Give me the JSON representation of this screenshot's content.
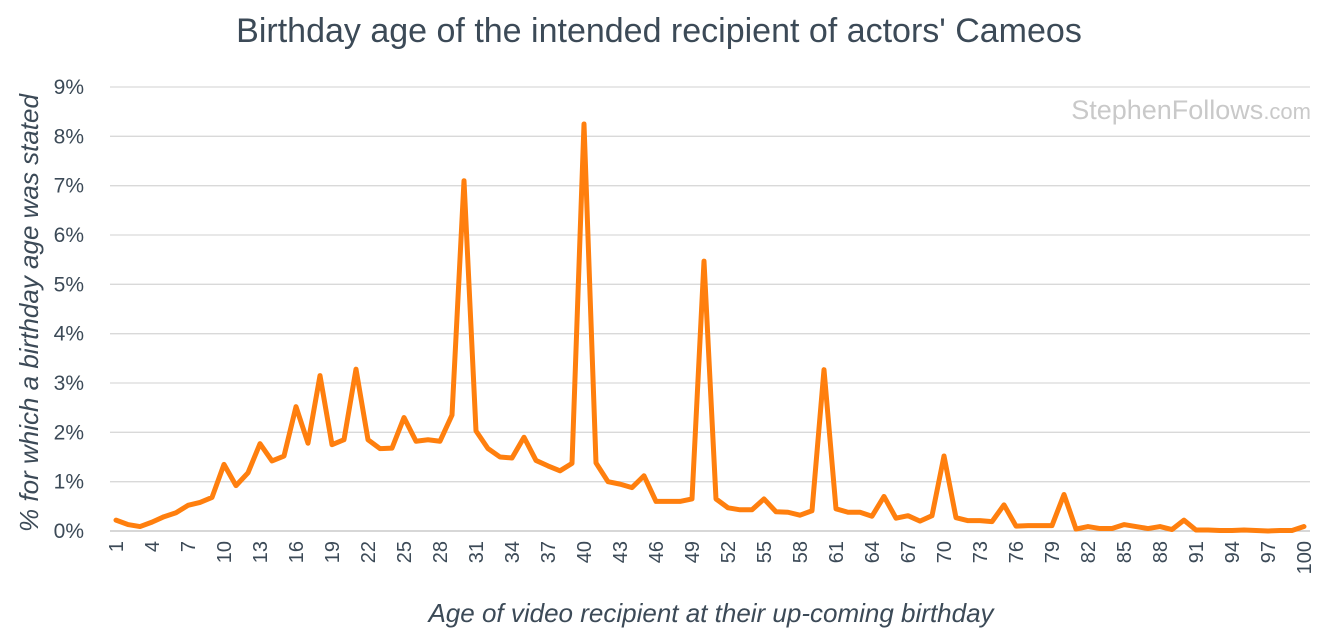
{
  "colors": {
    "line": "#ff7f0e",
    "text": "#3c4a57",
    "grid": "#d9d9d9",
    "watermark": "#c9c9c9"
  },
  "watermark": {
    "main": "StephenFollows",
    "suffix": ".com"
  },
  "chart_data": {
    "type": "line",
    "title": "Birthday age of the intended recipient of actors' Cameos",
    "xlabel": "Age of video recipient at their up-coming birthday",
    "ylabel": "% for which a birthday age was stated",
    "ylim": [
      0,
      9
    ],
    "y_ticks": [
      0,
      1,
      2,
      3,
      4,
      5,
      6,
      7,
      8,
      9
    ],
    "y_tick_labels": [
      "0%",
      "1%",
      "2%",
      "3%",
      "4%",
      "5%",
      "6%",
      "7%",
      "8%",
      "9%"
    ],
    "x_tick_labels": [
      "1",
      "4",
      "7",
      "10",
      "13",
      "16",
      "19",
      "22",
      "25",
      "28",
      "31",
      "34",
      "37",
      "40",
      "43",
      "46",
      "49",
      "52",
      "55",
      "58",
      "61",
      "64",
      "67",
      "70",
      "73",
      "76",
      "79",
      "82",
      "85",
      "88",
      "91",
      "94",
      "97",
      "100"
    ],
    "grid": true,
    "legend": "none",
    "series": [
      {
        "x": [
          1,
          2,
          3,
          4,
          5,
          6,
          7,
          8,
          9,
          10,
          11,
          12,
          13,
          14,
          15,
          16,
          17,
          18,
          19,
          20,
          21,
          22,
          23,
          24,
          25,
          26,
          27,
          28,
          29,
          30,
          31,
          32,
          33,
          34,
          35,
          36,
          37,
          38,
          39,
          40,
          41,
          42,
          43,
          44,
          45,
          46,
          47,
          48,
          49,
          50,
          51,
          52,
          53,
          54,
          55,
          56,
          57,
          58,
          59,
          60,
          61,
          62,
          63,
          64,
          65,
          66,
          67,
          68,
          69,
          70,
          71,
          72,
          73,
          74,
          75,
          76,
          77,
          78,
          79,
          80,
          81,
          82,
          83,
          84,
          85,
          86,
          87,
          88,
          89,
          90,
          91,
          92,
          93,
          94,
          95,
          96,
          97,
          98,
          99,
          100
        ],
        "values": [
          0.22,
          0.13,
          0.09,
          0.18,
          0.29,
          0.37,
          0.52,
          0.58,
          0.68,
          1.35,
          0.92,
          1.18,
          1.77,
          1.42,
          1.52,
          2.52,
          1.78,
          3.15,
          1.75,
          1.85,
          3.28,
          1.85,
          1.67,
          1.68,
          2.3,
          1.82,
          1.85,
          1.82,
          2.35,
          7.1,
          2.03,
          1.67,
          1.5,
          1.48,
          1.9,
          1.43,
          1.32,
          1.22,
          1.37,
          8.25,
          1.38,
          1.0,
          0.95,
          0.88,
          1.12,
          0.6,
          0.6,
          0.6,
          0.65,
          5.47,
          0.65,
          0.47,
          0.43,
          0.43,
          0.65,
          0.39,
          0.38,
          0.32,
          0.41,
          3.27,
          0.45,
          0.38,
          0.38,
          0.3,
          0.7,
          0.26,
          0.31,
          0.2,
          0.31,
          1.52,
          0.27,
          0.21,
          0.21,
          0.19,
          0.53,
          0.1,
          0.11,
          0.11,
          0.11,
          0.74,
          0.04,
          0.09,
          0.05,
          0.05,
          0.13,
          0.09,
          0.05,
          0.09,
          0.03,
          0.22,
          0.02,
          0.02,
          0.01,
          0.01,
          0.02,
          0.01,
          0.0,
          0.01,
          0.01,
          0.09
        ]
      }
    ]
  }
}
